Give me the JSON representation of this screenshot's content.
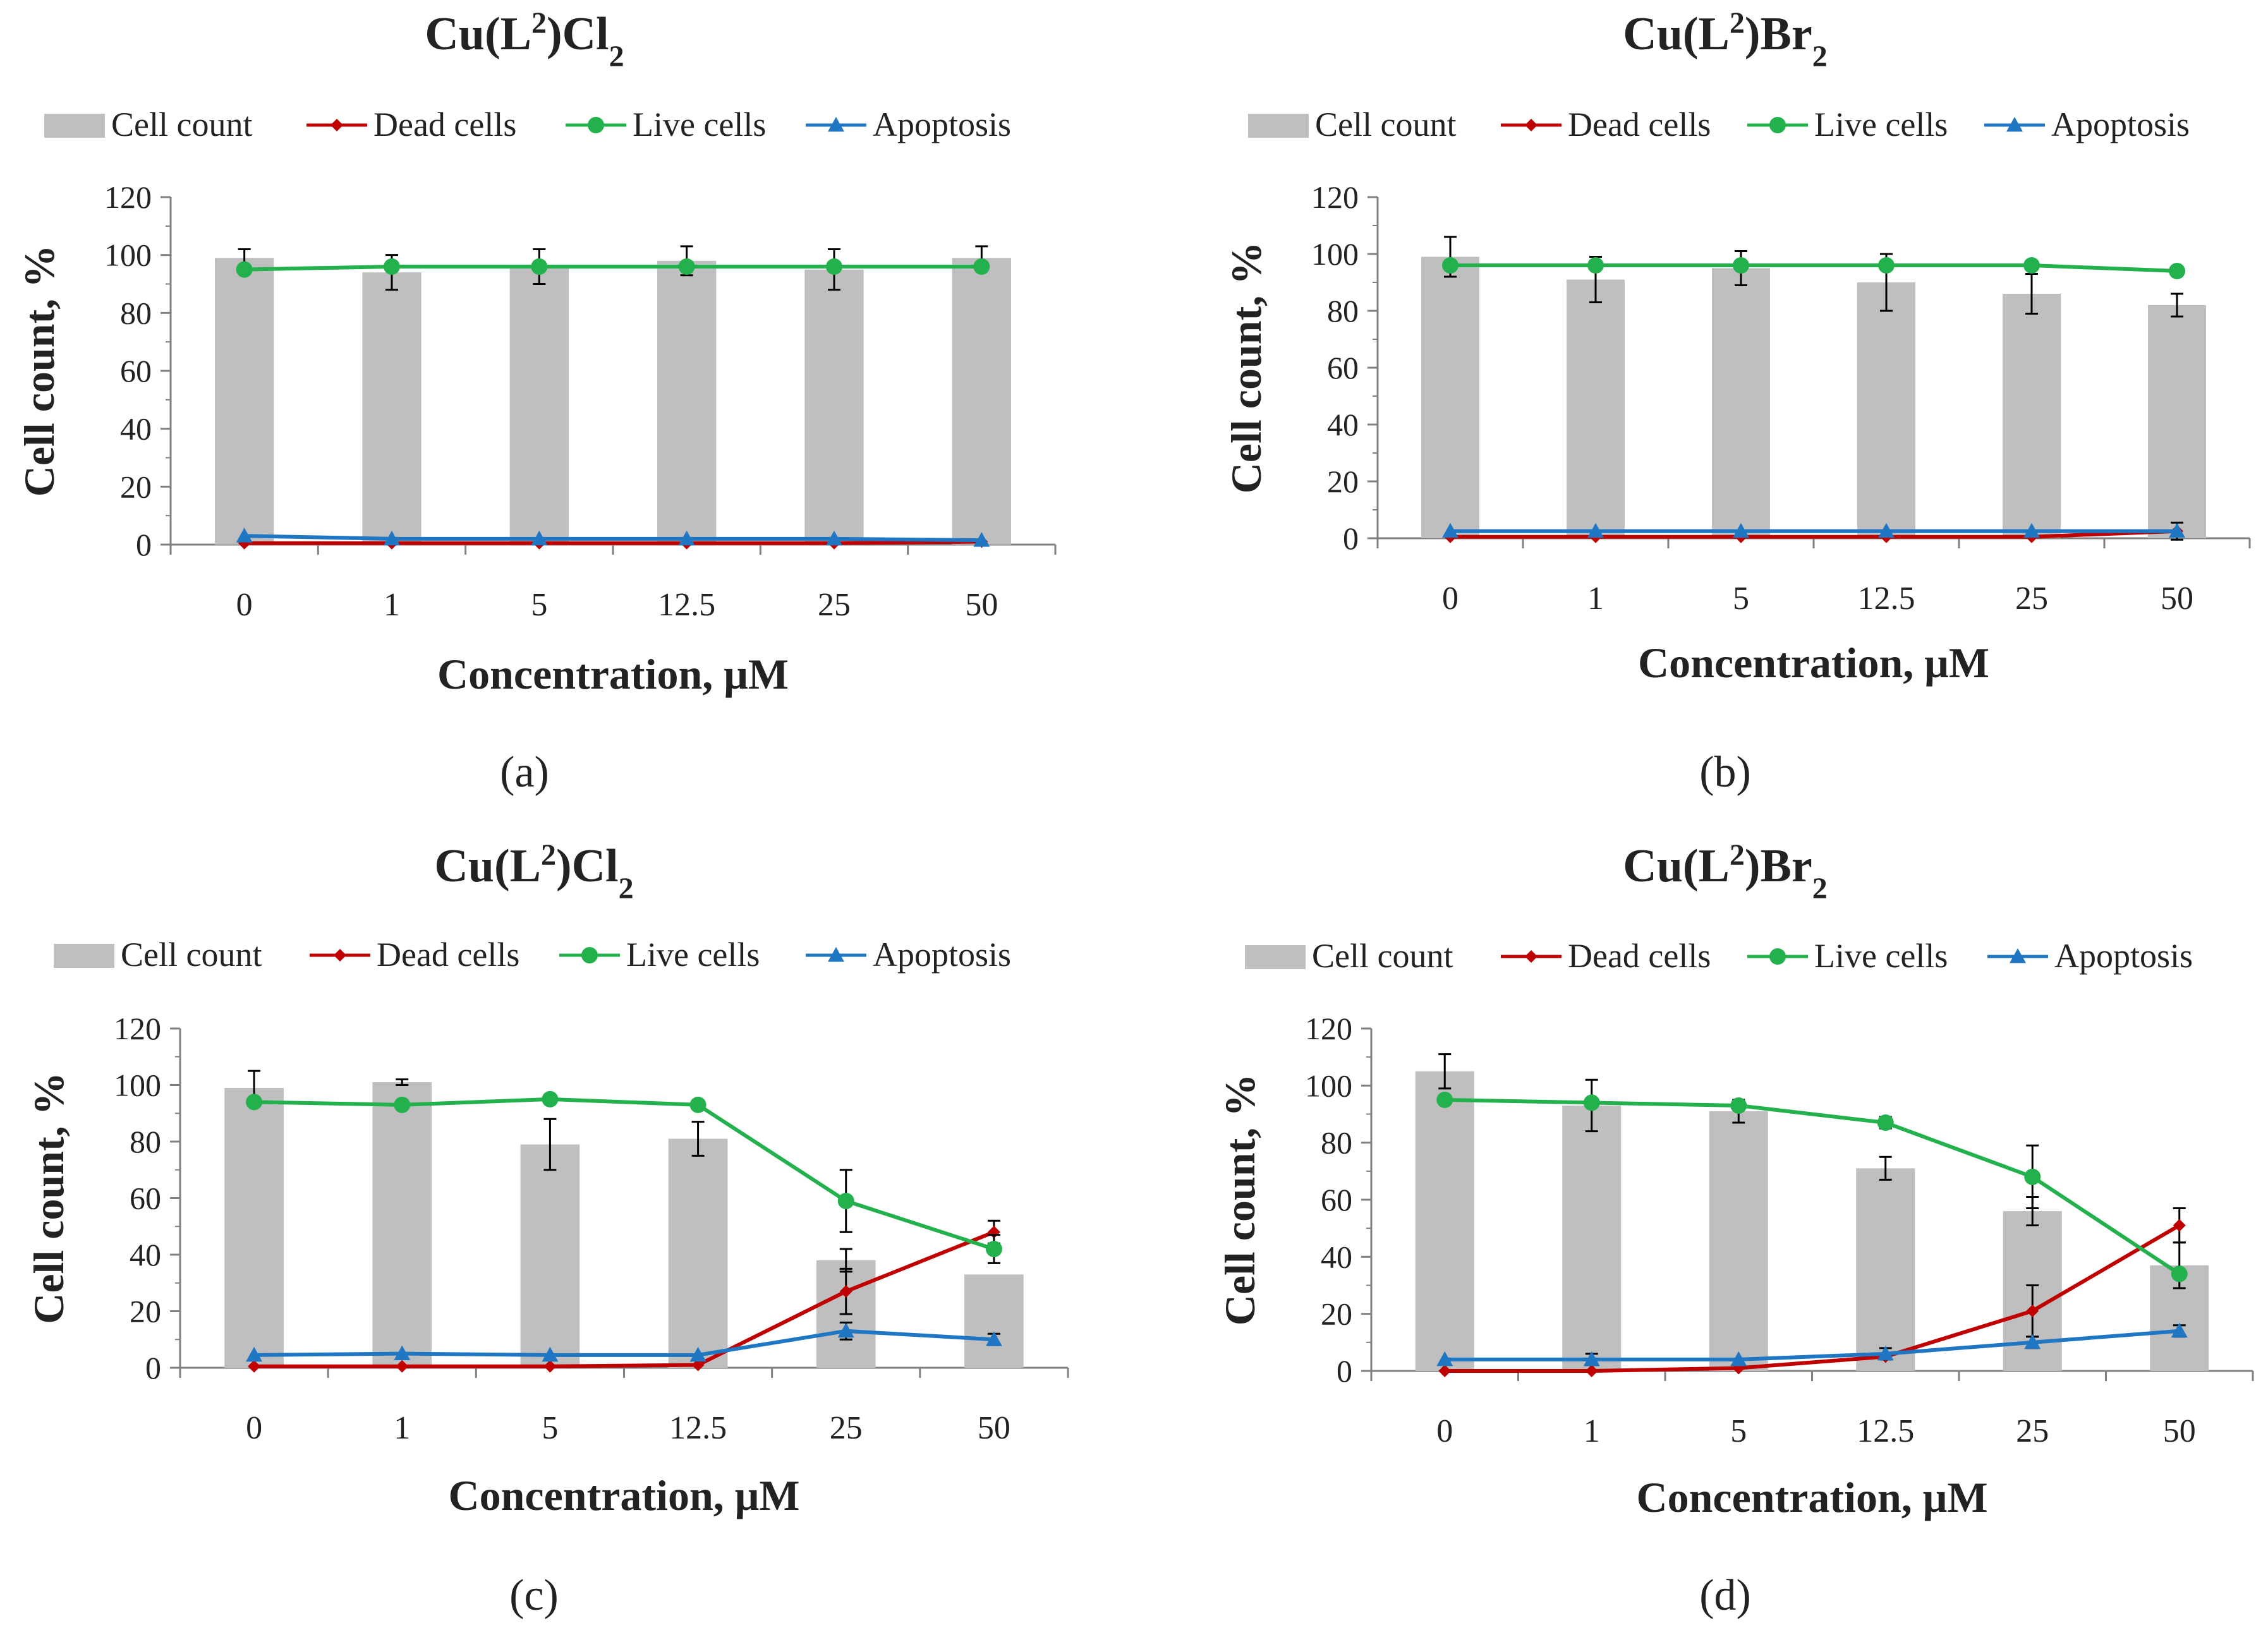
{
  "figure": {
    "series_names": [
      "Cell count",
      "Dead cells",
      "Live cells",
      "Apoptosis"
    ],
    "colors": {
      "cell_count": "#bfbfbf",
      "dead": "#c00000",
      "live": "#22b14c",
      "apoptosis": "#1f77c4",
      "axis": "#808080",
      "text": "#222222",
      "error": "#000000"
    }
  },
  "chart_data": [
    {
      "type": "bar",
      "panel_label": "(a)",
      "title": "Cu(L²)Cl₂",
      "title_parts": [
        "Cu(L",
        "2",
        ")Cl",
        "2"
      ],
      "categories": [
        "0",
        "1",
        "5",
        "12.5",
        "25",
        "50"
      ],
      "xlabel": "Concentration, μM",
      "ylabel": "Cell count, %",
      "ylim": [
        0,
        120
      ],
      "yticks": [
        "0",
        "20",
        "40",
        "60",
        "80",
        "100",
        "120"
      ],
      "legend": [
        "Cell count",
        "Dead cells",
        "Live cells",
        "Apoptosis"
      ],
      "series": [
        {
          "name": "Cell count",
          "kind": "bar",
          "values": [
            99,
            94,
            96,
            98,
            95,
            99
          ],
          "errors": [
            3,
            6,
            6,
            5,
            7,
            4
          ]
        },
        {
          "name": "Dead cells",
          "kind": "line",
          "values": [
            0.5,
            0.5,
            0.5,
            0.5,
            0.5,
            1
          ],
          "errors": [
            0,
            0,
            0,
            0,
            0,
            0
          ]
        },
        {
          "name": "Live cells",
          "kind": "line",
          "values": [
            95,
            96,
            96,
            96,
            96,
            96
          ],
          "errors": [
            0,
            0,
            0,
            0,
            0,
            0
          ]
        },
        {
          "name": "Apoptosis",
          "kind": "line",
          "values": [
            3,
            2,
            2,
            2,
            2,
            1.5
          ],
          "errors": [
            0,
            0,
            0,
            0,
            0,
            0
          ]
        }
      ]
    },
    {
      "type": "bar",
      "panel_label": "(b)",
      "title": "Cu(L²)Br₂",
      "title_parts": [
        "Cu(L",
        "2",
        ")Br",
        "2"
      ],
      "categories": [
        "0",
        "1",
        "5",
        "12.5",
        "25",
        "50"
      ],
      "xlabel": "Concentration, μM",
      "ylabel": "Cell count, %",
      "ylim": [
        0,
        120
      ],
      "yticks": [
        "0",
        "20",
        "40",
        "60",
        "80",
        "100",
        "120"
      ],
      "legend": [
        "Cell count",
        "Dead cells",
        "Live cells",
        "Apoptosis"
      ],
      "series": [
        {
          "name": "Cell count",
          "kind": "bar",
          "values": [
            99,
            91,
            95,
            90,
            86,
            82
          ],
          "errors": [
            7,
            8,
            6,
            10,
            7,
            4
          ]
        },
        {
          "name": "Dead cells",
          "kind": "line",
          "values": [
            0.5,
            0.5,
            0.5,
            0.5,
            0.5,
            2.5
          ],
          "errors": [
            0,
            0,
            0,
            0,
            0,
            3
          ]
        },
        {
          "name": "Live cells",
          "kind": "line",
          "values": [
            96,
            96,
            96,
            96,
            96,
            94
          ],
          "errors": [
            0,
            0,
            0,
            0,
            0,
            0
          ]
        },
        {
          "name": "Apoptosis",
          "kind": "line",
          "values": [
            2.5,
            2.5,
            2.5,
            2.5,
            2.5,
            2.5
          ],
          "errors": [
            0,
            0,
            0,
            0,
            0,
            0
          ]
        }
      ]
    },
    {
      "type": "bar",
      "panel_label": "(c)",
      "title": "Cu(L²)Cl₂",
      "title_parts": [
        "Cu(L",
        "2",
        ")Cl",
        "2"
      ],
      "categories": [
        "0",
        "1",
        "5",
        "12.5",
        "25",
        "50"
      ],
      "xlabel": "Concentration, μM",
      "ylabel": "Cell count, %",
      "ylim": [
        0,
        120
      ],
      "yticks": [
        "0",
        "20",
        "40",
        "60",
        "80",
        "100",
        "120"
      ],
      "legend": [
        "Cell count",
        "Dead cells",
        "Live cells",
        "Apoptosis"
      ],
      "series": [
        {
          "name": "Cell count",
          "kind": "bar",
          "values": [
            99,
            101,
            79,
            81,
            38,
            33
          ],
          "errors": [
            6,
            1,
            9,
            6,
            4,
            0
          ]
        },
        {
          "name": "Dead cells",
          "kind": "line",
          "values": [
            0.5,
            0.5,
            0.5,
            1,
            27,
            48
          ],
          "errors": [
            0,
            0,
            0,
            0,
            8,
            4
          ]
        },
        {
          "name": "Live cells",
          "kind": "line",
          "values": [
            94,
            93,
            95,
            93,
            59,
            42
          ],
          "errors": [
            0,
            0,
            0,
            0,
            11,
            5
          ]
        },
        {
          "name": "Apoptosis",
          "kind": "line",
          "values": [
            4.5,
            5,
            4.5,
            4.5,
            13,
            10
          ],
          "errors": [
            0,
            0,
            0,
            0,
            3,
            2
          ]
        }
      ]
    },
    {
      "type": "bar",
      "panel_label": "(d)",
      "title": "Cu(L²)Br₂",
      "title_parts": [
        "Cu(L",
        "2",
        ")Br",
        "2"
      ],
      "categories": [
        "0",
        "1",
        "5",
        "12.5",
        "25",
        "50"
      ],
      "xlabel": "Concentration, μM",
      "ylabel": "Cell count, %",
      "ylim": [
        0,
        120
      ],
      "yticks": [
        "0",
        "20",
        "40",
        "60",
        "80",
        "100",
        "120"
      ],
      "legend": [
        "Cell count",
        "Dead cells",
        "Live cells",
        "Apoptosis"
      ],
      "series": [
        {
          "name": "Cell count",
          "kind": "bar",
          "values": [
            105,
            93,
            91,
            71,
            56,
            37
          ],
          "errors": [
            6,
            9,
            4,
            4,
            5,
            8
          ]
        },
        {
          "name": "Dead cells",
          "kind": "line",
          "values": [
            0,
            0,
            1,
            5,
            21,
            51
          ],
          "errors": [
            0,
            0,
            0,
            0,
            9,
            6
          ]
        },
        {
          "name": "Live cells",
          "kind": "line",
          "values": [
            95,
            94,
            93,
            87,
            68,
            34
          ],
          "errors": [
            0,
            0,
            0,
            2,
            11,
            0
          ]
        },
        {
          "name": "Apoptosis",
          "kind": "line",
          "values": [
            4,
            4,
            4,
            6,
            10,
            14
          ],
          "errors": [
            0,
            2,
            0,
            2,
            2,
            2
          ]
        }
      ]
    }
  ]
}
